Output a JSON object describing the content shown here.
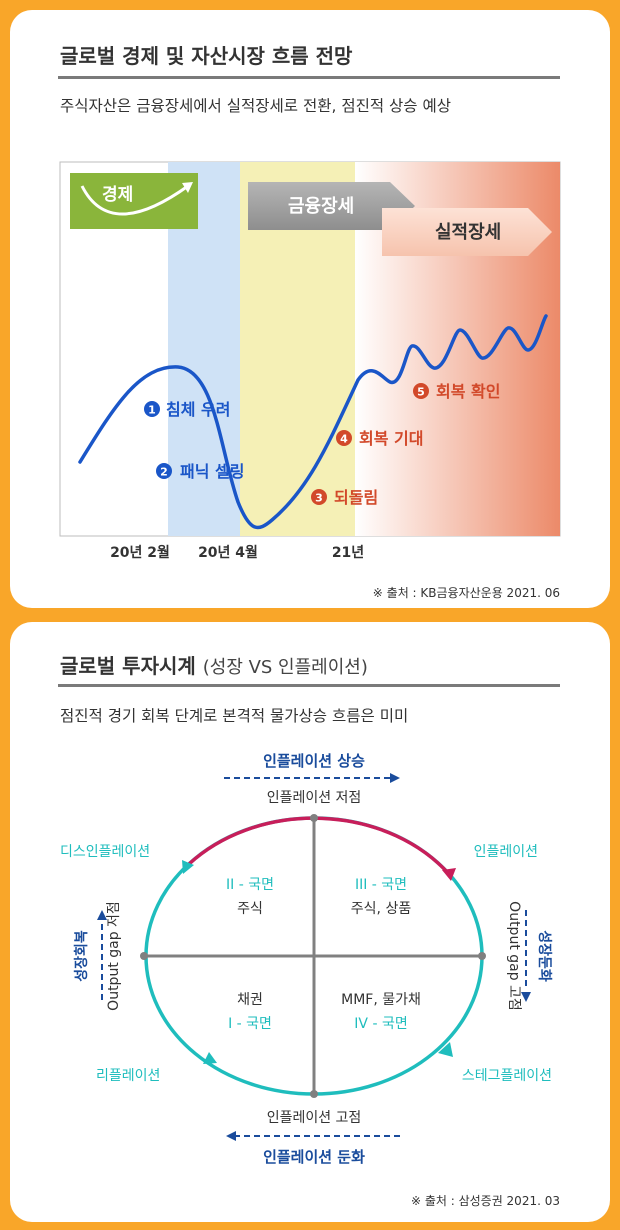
{
  "section1": {
    "title": "글로벌 경제 및 자산시장 흐름 전망",
    "subtitle": "주식자산은 금융장세에서 실적장세로 전환, 점진적 상승 예상",
    "economy_label": "경제",
    "phases": [
      "금융장세",
      "실적장세"
    ],
    "x_labels": [
      "20년 2월",
      "20년 4월",
      "21년"
    ],
    "steps": [
      {
        "num": "1",
        "text": "침체 우려"
      },
      {
        "num": "2",
        "text": "패닉 셀링"
      },
      {
        "num": "3",
        "text": "되돌림"
      },
      {
        "num": "4",
        "text": "회복 기대"
      },
      {
        "num": "5",
        "text": "회복 확인"
      }
    ],
    "source": "※ 출처 : KB금융자산운용 2021. 06",
    "colors": {
      "line": "#1a56c8",
      "blue_step": "#1a56c8",
      "red_step": "#d2492a",
      "green_box": "#8ab53b"
    }
  },
  "section2": {
    "title": "글로벌 투자시계",
    "title_sub": "(성장 VS 인플레이션)",
    "subtitle": "점진적 경기 회복 단계로 본격적 물가상승 흐름은 미미",
    "top_arrow": "인플레이션 상승",
    "top_axis": "인플레이션 저점",
    "bottom_axis": "인플레이션 고점",
    "bottom_arrow": "인플레이션 둔화",
    "left_axis": "Output gap 저점",
    "left_arrow": "성장회복",
    "right_axis": "Output gap 고점",
    "right_arrow": "성장둔화",
    "corners": {
      "top_left": "디스인플레이션",
      "top_right": "인플레이션",
      "bottom_left": "리플레이션",
      "bottom_right": "스테그플레이션"
    },
    "quadrants": {
      "q2": {
        "name": "II - 국면",
        "asset": "주식"
      },
      "q3": {
        "name": "III - 국면",
        "asset": "주식, 상품"
      },
      "q1": {
        "name": "I - 국면",
        "asset": "채권"
      },
      "q4": {
        "name": "IV - 국면",
        "asset": "MMF, 물가채"
      }
    },
    "source": "※ 출처 : 삼성증권 2021. 03",
    "colors": {
      "teal": "#1fbdbd",
      "magenta": "#c81e5a",
      "navy": "#1a4c9c"
    }
  }
}
